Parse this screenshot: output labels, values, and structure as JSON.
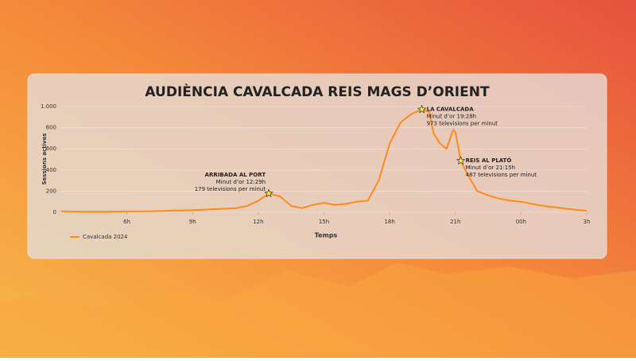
{
  "chart_data": {
    "type": "line",
    "title": "AUDIÈNCIA CAVALCADA REIS MAGS D’ORIENT",
    "x_label": "Temps",
    "y_label": "Sessions actives",
    "x": [
      3,
      4,
      5,
      6,
      7,
      8,
      9,
      10,
      11,
      11.5,
      12,
      12.48,
      13,
      13.5,
      14,
      14.5,
      15,
      15.5,
      16,
      16.5,
      17,
      17.5,
      18,
      18.5,
      19,
      19.47,
      19.8,
      20,
      20.3,
      20.6,
      20.9,
      21,
      21.25,
      21.5,
      22,
      22.5,
      23,
      23.5,
      24,
      24.5,
      25,
      25.5,
      26,
      26.5,
      27
    ],
    "series": [
      {
        "name": "Cavalcada 2024",
        "color": "#ff8a1c",
        "values": [
          10,
          5,
          5,
          8,
          10,
          15,
          20,
          30,
          40,
          60,
          110,
          179,
          150,
          60,
          40,
          70,
          90,
          70,
          80,
          100,
          110,
          300,
          650,
          850,
          930,
          973,
          950,
          750,
          650,
          600,
          780,
          760,
          487,
          380,
          200,
          160,
          130,
          110,
          100,
          80,
          60,
          50,
          35,
          25,
          15
        ]
      }
    ],
    "xlim": [
      3,
      27
    ],
    "xticks": [
      {
        "value": 6,
        "label": "6h"
      },
      {
        "value": 9,
        "label": "9h"
      },
      {
        "value": 12,
        "label": "12h"
      },
      {
        "value": 15,
        "label": "15h"
      },
      {
        "value": 18,
        "label": "18h"
      },
      {
        "value": 21,
        "label": "21h"
      },
      {
        "value": 24,
        "label": "00h"
      },
      {
        "value": 27,
        "label": "3h"
      }
    ],
    "ylim": [
      0,
      1000
    ],
    "yticks": [
      0,
      200,
      400,
      600,
      800,
      {
        "value": 1000,
        "label": "1.000"
      }
    ],
    "grid": true,
    "annotations": [
      {
        "x": 12.48,
        "y": 179,
        "lines": [
          "ARRIBADA AL PORT",
          "Minut d’or 12:29h",
          "179 televisions per minut"
        ]
      },
      {
        "x": 19.47,
        "y": 973,
        "lines": [
          "LA CAVALCADA",
          "Minut d’or 19:28h",
          "973 televisions per minut"
        ]
      },
      {
        "x": 21.25,
        "y": 487,
        "lines": [
          "REIS AL PLATÓ",
          "Minut d’or 21:15h",
          "487 televisions per minut"
        ]
      }
    ]
  }
}
